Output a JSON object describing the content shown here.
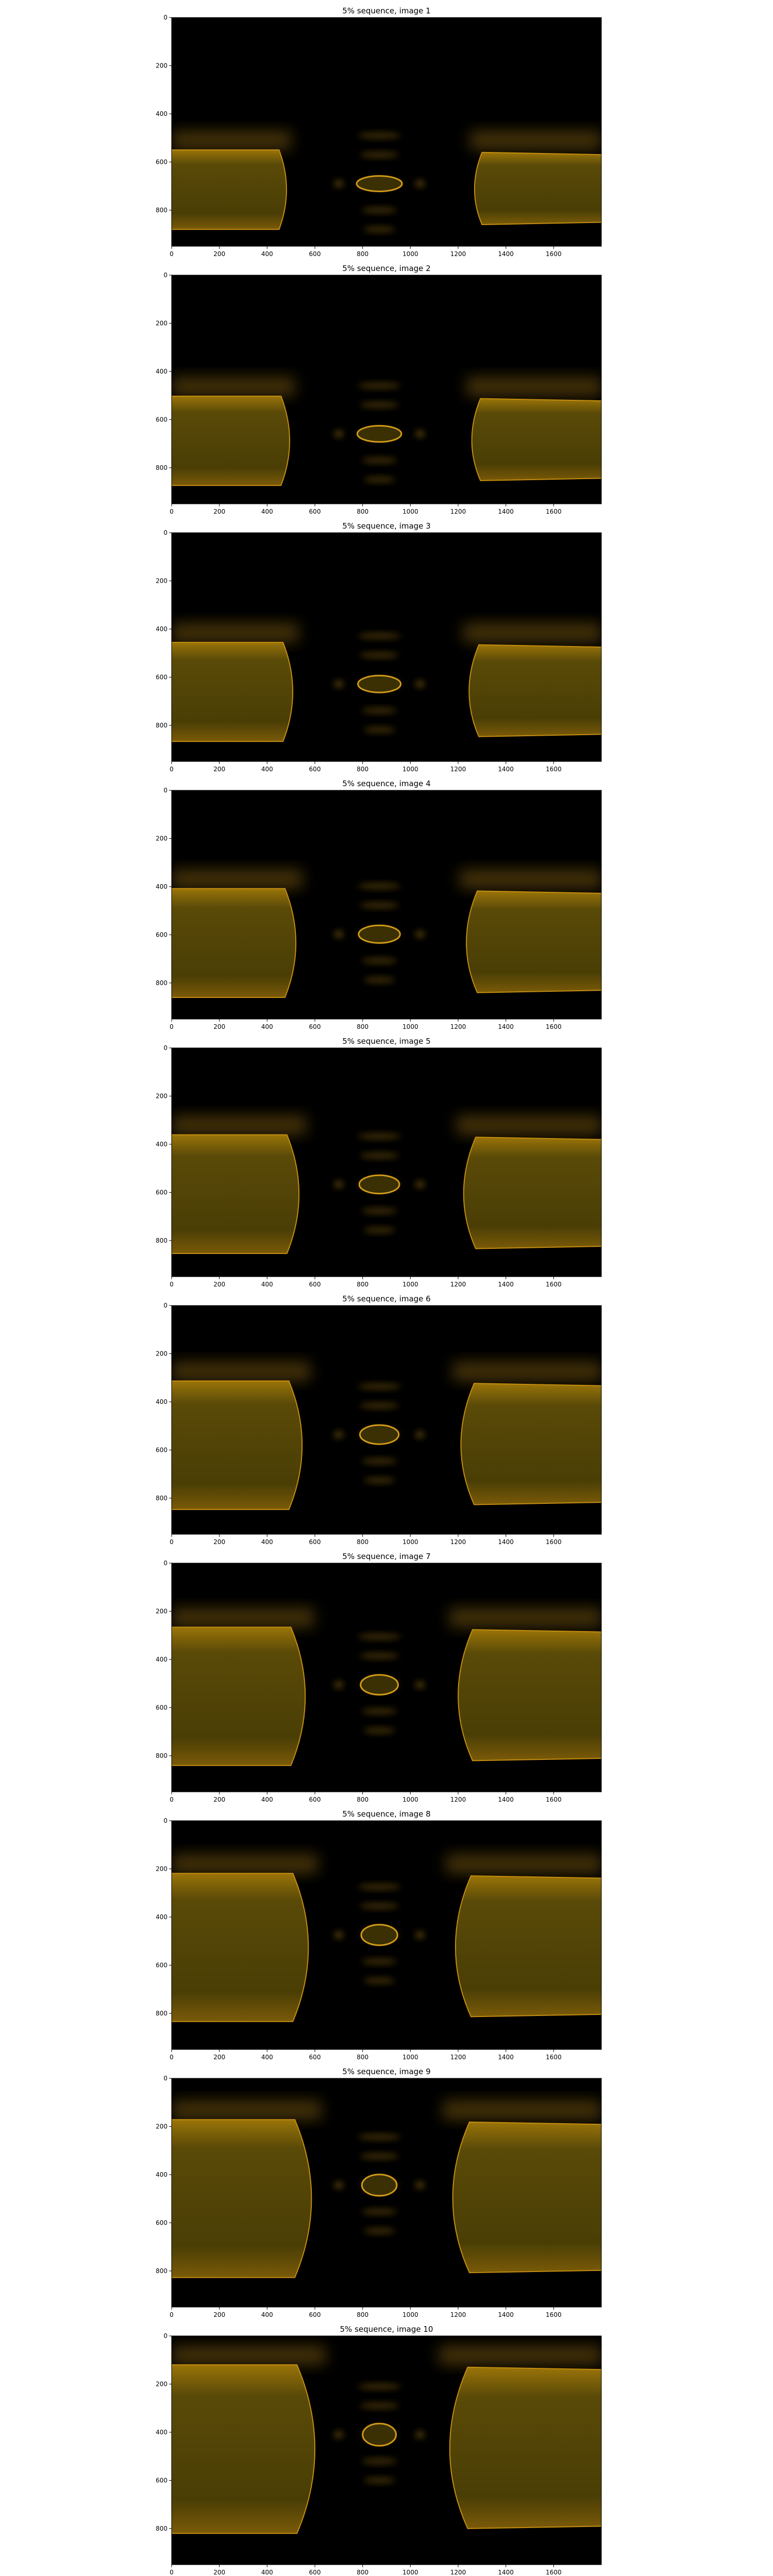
{
  "figure": {
    "background": "#ffffff",
    "panels": [
      {
        "title": "5% sequence, image 1",
        "progress": 0.0
      },
      {
        "title": "5% sequence, image 2",
        "progress": 0.11
      },
      {
        "title": "5% sequence, image 3",
        "progress": 0.22
      },
      {
        "title": "5% sequence, image 4",
        "progress": 0.33
      },
      {
        "title": "5% sequence, image 5",
        "progress": 0.44
      },
      {
        "title": "5% sequence, image 6",
        "progress": 0.55
      },
      {
        "title": "5% sequence, image 7",
        "progress": 0.66
      },
      {
        "title": "5% sequence, image 8",
        "progress": 0.77
      },
      {
        "title": "5% sequence, image 9",
        "progress": 0.88
      },
      {
        "title": "5% sequence, image 10",
        "progress": 1.0
      }
    ],
    "x_axis": {
      "range": [
        0,
        1800
      ],
      "ticks": [
        "0",
        "200",
        "400",
        "600",
        "800",
        "1000",
        "1200",
        "1400",
        "1600"
      ]
    },
    "y_axis": {
      "range": [
        0,
        950
      ],
      "inverted": true,
      "ticks": [
        "0",
        "200",
        "400",
        "600",
        "800"
      ]
    },
    "colors": {
      "droplet_fill": "#4a3e05",
      "droplet_edge": "#c48d10",
      "halo": "#7a5a08",
      "ring": "#d29a18",
      "dark": "#000000"
    }
  }
}
